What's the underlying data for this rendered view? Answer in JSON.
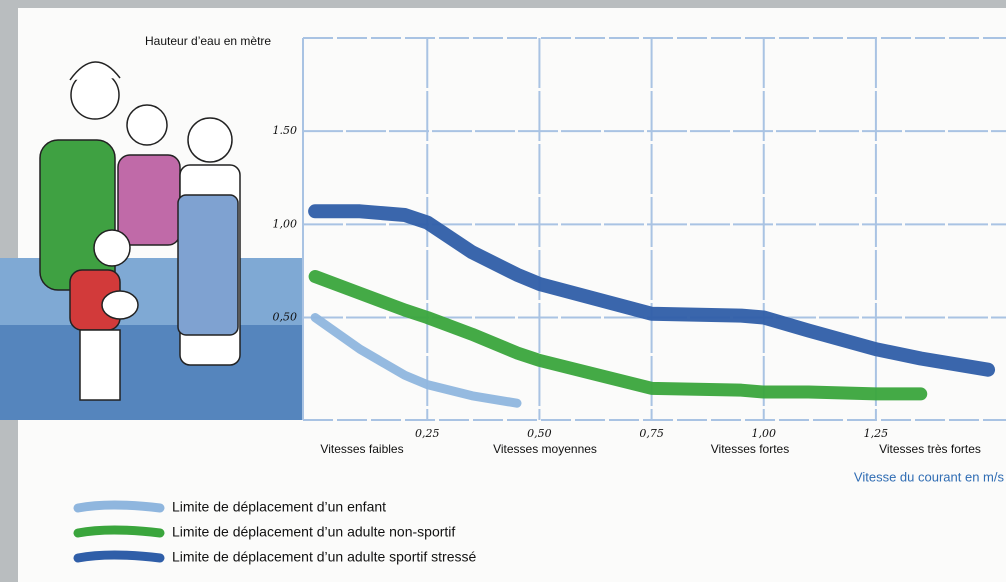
{
  "chart_data": {
    "type": "line",
    "y_axis_label": "Hauteur d’eau en mètre",
    "x_axis_label": "Vitesse du courant en m/s",
    "speed_labels": [
      "Vitesses faibles",
      "Vitesses moyennes",
      "Vitesses fortes",
      "Vitesses très fortes"
    ],
    "x": [
      0,
      0.1,
      0.2,
      0.25,
      0.35,
      0.45,
      0.5,
      0.75,
      0.95,
      1.0,
      1.1,
      1.25,
      1.35,
      1.5
    ],
    "series": [
      {
        "name": "Limite de déplacement d’un enfant",
        "color": "#8fb6de",
        "values": [
          0.5,
          0.33,
          0.19,
          0.14,
          0.08,
          0.04,
          null,
          null,
          null,
          null,
          null,
          null,
          null,
          null
        ]
      },
      {
        "name": "Limite de déplacement d’un adulte non-sportif",
        "color": "#3aa53c",
        "values": [
          0.72,
          0.63,
          0.54,
          0.5,
          0.41,
          0.31,
          0.27,
          0.12,
          0.11,
          0.1,
          0.1,
          0.09,
          0.09,
          null
        ]
      },
      {
        "name": "Limite de déplacement d’un adulte sportif stressé",
        "color": "#2f5ea8",
        "values": [
          1.07,
          1.07,
          1.05,
          1.01,
          0.85,
          0.73,
          0.68,
          0.52,
          0.51,
          0.5,
          0.43,
          0.33,
          0.28,
          0.22
        ]
      }
    ],
    "xlim": [
      -0.027,
      1.54
    ],
    "ylim": [
      -0.05,
      2.0
    ],
    "xticks": [
      {
        "value": 0.25,
        "label": "0,25"
      },
      {
        "value": 0.5,
        "label": "0,50"
      },
      {
        "value": 0.75,
        "label": "0,75"
      },
      {
        "value": 1.0,
        "label": "1,00"
      },
      {
        "value": 1.25,
        "label": "1,25"
      }
    ],
    "yticks": [
      {
        "value": 0.5,
        "label": "0,50"
      },
      {
        "value": 1.0,
        "label": "1,00"
      },
      {
        "value": 1.5,
        "label": "1.50"
      }
    ],
    "grid": true
  }
}
